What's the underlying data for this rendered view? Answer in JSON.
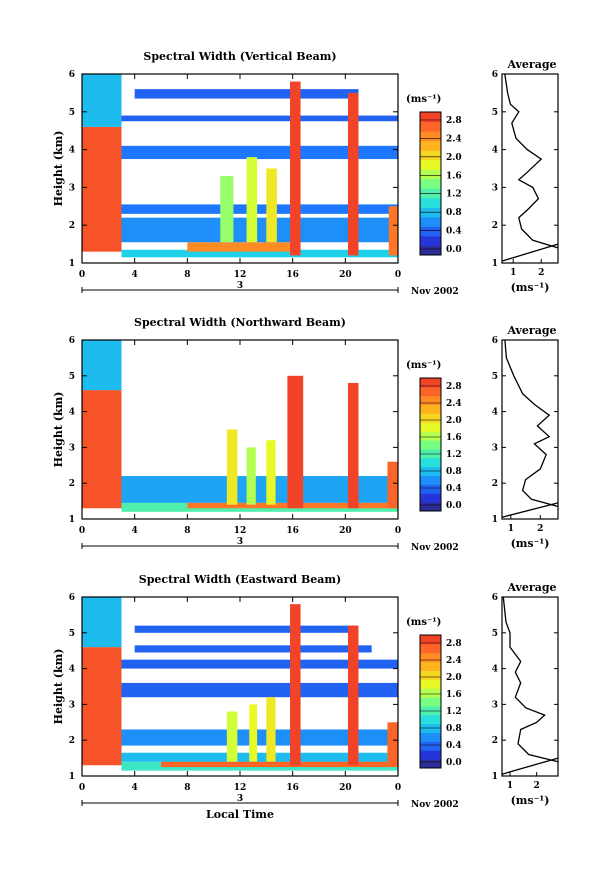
{
  "chart_data": [
    {
      "type": "heatmap",
      "title": "Spectral Width (Vertical Beam)",
      "ylabel": "Height (km)",
      "xlabel": "",
      "x_ticks": [
        "0",
        "4",
        "8",
        "12",
        "16",
        "20",
        "0"
      ],
      "y_ticks": [
        "1",
        "2",
        "3",
        "4",
        "5",
        "6"
      ],
      "date_day": "3",
      "date_month": "Nov 2002",
      "xlim": [
        0,
        24
      ],
      "ylim": [
        1,
        6
      ],
      "colorbar": {
        "unit": "(ms⁻¹)",
        "ticks": [
          "0.0",
          "0.4",
          "0.8",
          "1.2",
          "1.6",
          "2.0",
          "2.4",
          "2.8"
        ],
        "range": [
          0,
          3.0
        ]
      },
      "regions": [
        {
          "x": [
            0,
            3
          ],
          "y": [
            1.3,
            4.6
          ],
          "value": 2.8
        },
        {
          "x": [
            0,
            3
          ],
          "y": [
            4.6,
            6
          ],
          "value": 0.9
        },
        {
          "x": [
            3,
            24
          ],
          "y": [
            1.15,
            1.35
          ],
          "value": 1.0
        },
        {
          "x": [
            8,
            16
          ],
          "y": [
            1.3,
            1.55
          ],
          "value": 2.5
        },
        {
          "x": [
            3,
            24
          ],
          "y": [
            1.55,
            2.2
          ],
          "value": 0.7
        },
        {
          "x": [
            3,
            24
          ],
          "y": [
            2.3,
            2.55
          ],
          "value": 0.6
        },
        {
          "x": [
            3,
            24
          ],
          "y": [
            3.75,
            4.1
          ],
          "value": 0.6
        },
        {
          "x": [
            3,
            24
          ],
          "y": [
            4.75,
            4.9
          ],
          "value": 0.5
        },
        {
          "x": [
            4,
            21
          ],
          "y": [
            5.35,
            5.6
          ],
          "value": 0.5
        },
        {
          "x": [
            10.5,
            11.5
          ],
          "y": [
            1.55,
            3.3
          ],
          "value": 1.6
        },
        {
          "x": [
            12.5,
            13.3
          ],
          "y": [
            1.55,
            3.8
          ],
          "value": 1.8
        },
        {
          "x": [
            14,
            14.8
          ],
          "y": [
            1.55,
            3.5
          ],
          "value": 2.0
        },
        {
          "x": [
            15.8,
            16.6
          ],
          "y": [
            1.2,
            5.8
          ],
          "value": 2.9
        },
        {
          "x": [
            20.2,
            21
          ],
          "y": [
            1.2,
            5.5
          ],
          "value": 2.9
        },
        {
          "x": [
            23.3,
            24
          ],
          "y": [
            1.2,
            2.5
          ],
          "value": 2.6
        }
      ],
      "average": {
        "title": "Average",
        "xlabel": "(ms⁻¹)",
        "x_ticks": [
          "1",
          "2"
        ],
        "y_ticks": [
          "1",
          "2",
          "3",
          "4",
          "5",
          "6"
        ],
        "xlim": [
          0.6,
          2.6
        ],
        "ylim": [
          1,
          6
        ],
        "profile": [
          [
            2.6,
            1.4
          ],
          [
            1.7,
            1.6
          ],
          [
            1.3,
            1.9
          ],
          [
            1.2,
            2.2
          ],
          [
            1.5,
            2.4
          ],
          [
            1.9,
            2.7
          ],
          [
            1.7,
            3.0
          ],
          [
            1.2,
            3.2
          ],
          [
            1.5,
            3.4
          ],
          [
            2.0,
            3.75
          ],
          [
            1.5,
            4.0
          ],
          [
            1.1,
            4.3
          ],
          [
            0.95,
            4.7
          ],
          [
            1.2,
            5.0
          ],
          [
            0.9,
            5.2
          ],
          [
            0.8,
            5.5
          ],
          [
            0.7,
            6.0
          ]
        ],
        "tail": [
          [
            0.6,
            1.05
          ],
          [
            2.6,
            1.5
          ]
        ]
      }
    },
    {
      "type": "heatmap",
      "title": "Spectral Width (Northward Beam)",
      "ylabel": "Height (km)",
      "xlabel": "",
      "x_ticks": [
        "0",
        "4",
        "8",
        "12",
        "16",
        "20",
        "0"
      ],
      "y_ticks": [
        "1",
        "2",
        "3",
        "4",
        "5",
        "6"
      ],
      "date_day": "3",
      "date_month": "Nov 2002",
      "xlim": [
        0,
        24
      ],
      "ylim": [
        1,
        6
      ],
      "colorbar": {
        "unit": "(ms⁻¹)",
        "ticks": [
          "0.0",
          "0.4",
          "0.8",
          "1.2",
          "1.6",
          "2.0",
          "2.4",
          "2.8"
        ],
        "range": [
          0,
          3.0
        ]
      },
      "regions": [
        {
          "x": [
            0,
            3
          ],
          "y": [
            1.3,
            4.6
          ],
          "value": 2.8
        },
        {
          "x": [
            0,
            3
          ],
          "y": [
            4.6,
            6
          ],
          "value": 0.9
        },
        {
          "x": [
            3,
            24
          ],
          "y": [
            1.2,
            1.45
          ],
          "value": 1.3
        },
        {
          "x": [
            3,
            24
          ],
          "y": [
            1.45,
            2.2
          ],
          "value": 0.8
        },
        {
          "x": [
            8,
            24
          ],
          "y": [
            1.3,
            1.45
          ],
          "value": 2.6
        },
        {
          "x": [
            11,
            11.8
          ],
          "y": [
            1.4,
            3.5
          ],
          "value": 2.0
        },
        {
          "x": [
            12.5,
            13.2
          ],
          "y": [
            1.4,
            3.0
          ],
          "value": 1.7
        },
        {
          "x": [
            14,
            14.7
          ],
          "y": [
            1.4,
            3.2
          ],
          "value": 1.9
        },
        {
          "x": [
            15.6,
            16.8
          ],
          "y": [
            1.3,
            5.0
          ],
          "value": 2.9
        },
        {
          "x": [
            20.2,
            21
          ],
          "y": [
            1.3,
            4.8
          ],
          "value": 2.9
        },
        {
          "x": [
            23.2,
            24
          ],
          "y": [
            1.3,
            2.6
          ],
          "value": 2.7
        }
      ],
      "average": {
        "title": "Average",
        "xlabel": "(ms⁻¹)",
        "x_ticks": [
          "1",
          "2"
        ],
        "y_ticks": [
          "1",
          "2",
          "3",
          "4",
          "5",
          "6"
        ],
        "xlim": [
          0.7,
          2.6
        ],
        "ylim": [
          1,
          6
        ],
        "profile": [
          [
            2.6,
            1.35
          ],
          [
            1.7,
            1.55
          ],
          [
            1.4,
            1.8
          ],
          [
            1.5,
            2.1
          ],
          [
            2.0,
            2.4
          ],
          [
            2.2,
            2.8
          ],
          [
            1.8,
            3.1
          ],
          [
            2.3,
            3.3
          ],
          [
            1.9,
            3.6
          ],
          [
            2.3,
            3.9
          ],
          [
            1.8,
            4.2
          ],
          [
            1.4,
            4.5
          ],
          [
            1.1,
            5.0
          ],
          [
            0.85,
            5.5
          ],
          [
            0.8,
            6.0
          ]
        ],
        "tail": [
          [
            0.7,
            1.05
          ],
          [
            2.6,
            1.45
          ]
        ]
      }
    },
    {
      "type": "heatmap",
      "title": "Spectral Width (Eastward Beam)",
      "ylabel": "Height (km)",
      "xlabel": "Local Time",
      "x_ticks": [
        "0",
        "4",
        "8",
        "12",
        "16",
        "20",
        "0"
      ],
      "y_ticks": [
        "1",
        "2",
        "3",
        "4",
        "5",
        "6"
      ],
      "date_day": "3",
      "date_month": "Nov 2002",
      "xlim": [
        0,
        24
      ],
      "ylim": [
        1,
        6
      ],
      "colorbar": {
        "unit": "(ms⁻¹)",
        "ticks": [
          "0.0",
          "0.4",
          "0.8",
          "1.2",
          "1.6",
          "2.0",
          "2.4",
          "2.8"
        ],
        "range": [
          0,
          3.0
        ]
      },
      "regions": [
        {
          "x": [
            0,
            3
          ],
          "y": [
            1.3,
            4.6
          ],
          "value": 2.8
        },
        {
          "x": [
            0,
            3
          ],
          "y": [
            4.6,
            6
          ],
          "value": 0.9
        },
        {
          "x": [
            3,
            24
          ],
          "y": [
            1.15,
            1.4
          ],
          "value": 1.2
        },
        {
          "x": [
            6,
            24
          ],
          "y": [
            1.25,
            1.4
          ],
          "value": 2.7
        },
        {
          "x": [
            3,
            24
          ],
          "y": [
            1.4,
            1.65
          ],
          "value": 0.9
        },
        {
          "x": [
            3,
            24
          ],
          "y": [
            1.85,
            2.3
          ],
          "value": 0.7
        },
        {
          "x": [
            3,
            24
          ],
          "y": [
            3.2,
            3.6
          ],
          "value": 0.5
        },
        {
          "x": [
            3,
            24
          ],
          "y": [
            4.0,
            4.25
          ],
          "value": 0.5
        },
        {
          "x": [
            4,
            22
          ],
          "y": [
            4.45,
            4.65
          ],
          "value": 0.5
        },
        {
          "x": [
            4,
            21
          ],
          "y": [
            5.0,
            5.2
          ],
          "value": 0.5
        },
        {
          "x": [
            11,
            11.8
          ],
          "y": [
            1.4,
            2.8
          ],
          "value": 1.8
        },
        {
          "x": [
            12.7,
            13.3
          ],
          "y": [
            1.4,
            3.0
          ],
          "value": 1.9
        },
        {
          "x": [
            14,
            14.7
          ],
          "y": [
            1.4,
            3.2
          ],
          "value": 2.0
        },
        {
          "x": [
            15.8,
            16.6
          ],
          "y": [
            1.3,
            5.8
          ],
          "value": 2.9
        },
        {
          "x": [
            20.2,
            21
          ],
          "y": [
            1.3,
            5.2
          ],
          "value": 2.9
        },
        {
          "x": [
            23.2,
            24
          ],
          "y": [
            1.3,
            2.5
          ],
          "value": 2.7
        }
      ],
      "average": {
        "title": "Average",
        "xlabel": "(ms⁻¹)",
        "x_ticks": [
          "1",
          "2"
        ],
        "y_ticks": [
          "1",
          "2",
          "3",
          "4",
          "5",
          "6"
        ],
        "xlim": [
          0.7,
          2.8
        ],
        "ylim": [
          1,
          6
        ],
        "profile": [
          [
            2.8,
            1.4
          ],
          [
            1.7,
            1.6
          ],
          [
            1.3,
            1.9
          ],
          [
            1.4,
            2.3
          ],
          [
            2.0,
            2.5
          ],
          [
            2.3,
            2.7
          ],
          [
            1.6,
            2.9
          ],
          [
            1.2,
            3.2
          ],
          [
            1.4,
            3.6
          ],
          [
            1.2,
            3.9
          ],
          [
            1.4,
            4.2
          ],
          [
            1.0,
            4.6
          ],
          [
            1.0,
            5.0
          ],
          [
            0.85,
            5.3
          ],
          [
            0.75,
            6.0
          ]
        ],
        "tail": [
          [
            0.7,
            1.05
          ],
          [
            2.8,
            1.5
          ]
        ]
      }
    }
  ]
}
